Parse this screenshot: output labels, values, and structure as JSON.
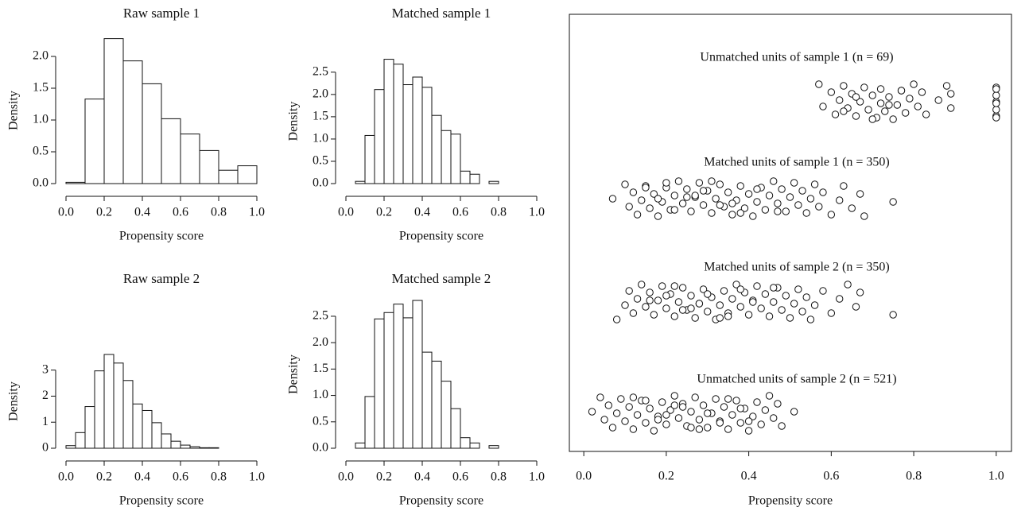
{
  "chart_data": [
    {
      "type": "histogram",
      "title": "Raw sample 1",
      "xlabel": "Propensity score",
      "ylabel": "Density",
      "bins": [
        0,
        0.1,
        0.2,
        0.3,
        0.4,
        0.5,
        0.6,
        0.7,
        0.8,
        0.9,
        1.0
      ],
      "values": [
        0.02,
        1.33,
        2.28,
        1.93,
        1.57,
        1.02,
        0.78,
        0.52,
        0.21,
        0.28
      ],
      "xlim": [
        0,
        1
      ],
      "ylim": [
        0,
        2.3
      ],
      "xticks": [
        {
          "value": 0,
          "label": "0.0"
        },
        0.2,
        0.4,
        0.6,
        0.8,
        {
          "value": 1,
          "label": "1.0"
        }
      ],
      "yticks": [
        {
          "value": 0,
          "label": "0.0"
        },
        0.5,
        {
          "value": 1,
          "label": "1.0"
        },
        1.5,
        {
          "value": 2,
          "label": "2.0"
        }
      ]
    },
    {
      "type": "histogram",
      "title": "Matched sample 1",
      "xlabel": "Propensity score",
      "ylabel": "Density",
      "bins": [
        0.05,
        0.1,
        0.15,
        0.2,
        0.25,
        0.3,
        0.35,
        0.4,
        0.45,
        0.5,
        0.55,
        0.6,
        0.65,
        0.7,
        0.75,
        0.8
      ],
      "values": [
        0.05,
        1.08,
        2.11,
        2.79,
        2.68,
        2.22,
        2.39,
        2.16,
        1.53,
        1.19,
        1.11,
        0.28,
        0.21,
        0,
        0.05
      ],
      "xlim": [
        0,
        1
      ],
      "ylim": [
        0,
        2.8
      ],
      "xticks": [
        {
          "value": 0,
          "label": "0.0"
        },
        0.2,
        0.4,
        0.6,
        0.8,
        {
          "value": 1,
          "label": "1.0"
        }
      ],
      "yticks": [
        {
          "value": 0,
          "label": "0.0"
        },
        0.5,
        {
          "value": 1,
          "label": "1.0"
        },
        1.5,
        {
          "value": 2,
          "label": "2.0"
        },
        2.5
      ]
    },
    {
      "type": "histogram",
      "title": "Raw sample 2",
      "xlabel": "Propensity score",
      "ylabel": "Density",
      "bins": [
        0,
        0.05,
        0.1,
        0.15,
        0.2,
        0.25,
        0.3,
        0.35,
        0.4,
        0.45,
        0.5,
        0.55,
        0.6,
        0.65,
        0.7,
        0.75,
        0.8
      ],
      "values": [
        0.1,
        0.6,
        1.6,
        2.97,
        3.6,
        3.27,
        2.6,
        1.7,
        1.45,
        0.98,
        0.55,
        0.27,
        0.12,
        0.06,
        0.02,
        0.02
      ],
      "xlim": [
        0,
        1
      ],
      "ylim": [
        0,
        3.6
      ],
      "xticks": [
        {
          "value": 0,
          "label": "0.0"
        },
        0.2,
        0.4,
        0.6,
        0.8,
        {
          "value": 1,
          "label": "1.0"
        }
      ],
      "yticks": [
        0,
        1,
        2,
        3
      ]
    },
    {
      "type": "histogram",
      "title": "Matched sample 2",
      "xlabel": "Propensity score",
      "ylabel": "Density",
      "bins": [
        0.05,
        0.1,
        0.15,
        0.2,
        0.25,
        0.3,
        0.35,
        0.4,
        0.45,
        0.5,
        0.55,
        0.6,
        0.65,
        0.7,
        0.75,
        0.8
      ],
      "values": [
        0.1,
        0.98,
        2.45,
        2.57,
        2.73,
        2.47,
        2.8,
        1.82,
        1.65,
        1.27,
        0.75,
        0.2,
        0.1,
        0,
        0.05
      ],
      "xlim": [
        0,
        1
      ],
      "ylim": [
        0,
        2.8
      ],
      "xticks": [
        {
          "value": 0,
          "label": "0.0"
        },
        0.2,
        0.4,
        0.6,
        0.8,
        {
          "value": 1,
          "label": "1.0"
        }
      ],
      "yticks": [
        {
          "value": 0,
          "label": "0.0"
        },
        0.5,
        {
          "value": 1,
          "label": "1.0"
        },
        1.5,
        {
          "value": 2,
          "label": "2.0"
        },
        2.5
      ]
    },
    {
      "type": "strip",
      "xlabel": "Propensity score",
      "xlim": [
        -0.035,
        1.037
      ],
      "xticks": [
        {
          "value": 0,
          "label": "0.0"
        },
        0.2,
        0.4,
        0.6,
        0.8,
        {
          "value": 1,
          "label": "1.0"
        }
      ],
      "series": [
        {
          "name": "Unmatched units of sample 1 (n = 69)",
          "values": [
            0.57,
            0.58,
            0.6,
            0.61,
            0.62,
            0.63,
            0.64,
            0.65,
            0.66,
            0.67,
            0.68,
            0.69,
            0.7,
            0.71,
            0.72,
            0.72,
            0.73,
            0.74,
            0.75,
            0.76,
            0.77,
            0.78,
            0.79,
            0.8,
            0.81,
            0.82,
            0.83,
            0.86,
            0.88,
            0.89,
            0.89,
            1,
            1,
            1,
            1,
            1,
            1,
            1,
            1,
            0.63,
            0.66,
            0.7,
            0.74,
            0.77
          ]
        },
        {
          "name": "Matched units of sample 1 (n = 350)",
          "values": [
            0.07,
            0.1,
            0.11,
            0.12,
            0.13,
            0.14,
            0.15,
            0.16,
            0.17,
            0.18,
            0.19,
            0.2,
            0.21,
            0.22,
            0.23,
            0.24,
            0.25,
            0.26,
            0.27,
            0.28,
            0.29,
            0.3,
            0.31,
            0.32,
            0.33,
            0.34,
            0.35,
            0.36,
            0.37,
            0.38,
            0.39,
            0.4,
            0.41,
            0.42,
            0.43,
            0.44,
            0.45,
            0.46,
            0.47,
            0.48,
            0.49,
            0.5,
            0.51,
            0.52,
            0.53,
            0.54,
            0.55,
            0.56,
            0.57,
            0.58,
            0.6,
            0.62,
            0.63,
            0.65,
            0.67,
            0.68,
            0.75,
            0.15,
            0.22,
            0.27,
            0.31,
            0.36,
            0.42,
            0.47,
            0.25,
            0.2,
            0.33,
            0.29,
            0.38,
            0.18
          ]
        },
        {
          "name": "Matched units of sample 2 (n = 350)",
          "values": [
            0.08,
            0.1,
            0.11,
            0.12,
            0.13,
            0.14,
            0.15,
            0.16,
            0.17,
            0.18,
            0.19,
            0.2,
            0.21,
            0.22,
            0.23,
            0.24,
            0.25,
            0.26,
            0.27,
            0.28,
            0.29,
            0.3,
            0.31,
            0.32,
            0.33,
            0.34,
            0.35,
            0.36,
            0.37,
            0.38,
            0.39,
            0.4,
            0.41,
            0.42,
            0.43,
            0.44,
            0.45,
            0.46,
            0.47,
            0.48,
            0.49,
            0.5,
            0.51,
            0.52,
            0.53,
            0.54,
            0.55,
            0.56,
            0.58,
            0.6,
            0.62,
            0.64,
            0.66,
            0.67,
            0.75,
            0.16,
            0.22,
            0.26,
            0.3,
            0.35,
            0.41,
            0.46,
            0.24,
            0.2,
            0.33,
            0.28,
            0.38
          ]
        },
        {
          "name": "Unmatched units of sample 2 (n = 521)",
          "values": [
            0.02,
            0.04,
            0.05,
            0.06,
            0.07,
            0.08,
            0.09,
            0.1,
            0.11,
            0.12,
            0.13,
            0.14,
            0.15,
            0.16,
            0.17,
            0.18,
            0.19,
            0.2,
            0.21,
            0.22,
            0.23,
            0.24,
            0.25,
            0.26,
            0.27,
            0.28,
            0.29,
            0.3,
            0.31,
            0.32,
            0.33,
            0.34,
            0.35,
            0.36,
            0.37,
            0.38,
            0.39,
            0.4,
            0.41,
            0.42,
            0.43,
            0.44,
            0.45,
            0.46,
            0.47,
            0.48,
            0.51,
            0.12,
            0.18,
            0.22,
            0.26,
            0.3,
            0.35,
            0.4,
            0.24,
            0.28,
            0.2,
            0.15,
            0.33,
            0.38
          ]
        }
      ]
    }
  ]
}
